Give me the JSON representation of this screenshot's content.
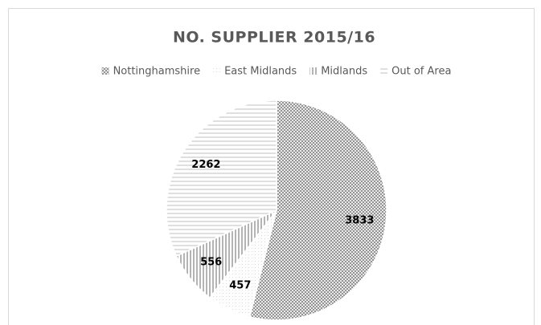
{
  "chart_data": {
    "type": "pie",
    "title": "NO. SUPPLIER 2015/16",
    "categories": [
      "Nottinghamshire",
      "East Midlands",
      "Midlands",
      "Out of Area"
    ],
    "values": [
      3833,
      457,
      556,
      2262
    ],
    "colors": [
      "#7f7f7f",
      "#d9d9d9",
      "#8c8c8c",
      "#bfbfbf"
    ]
  }
}
